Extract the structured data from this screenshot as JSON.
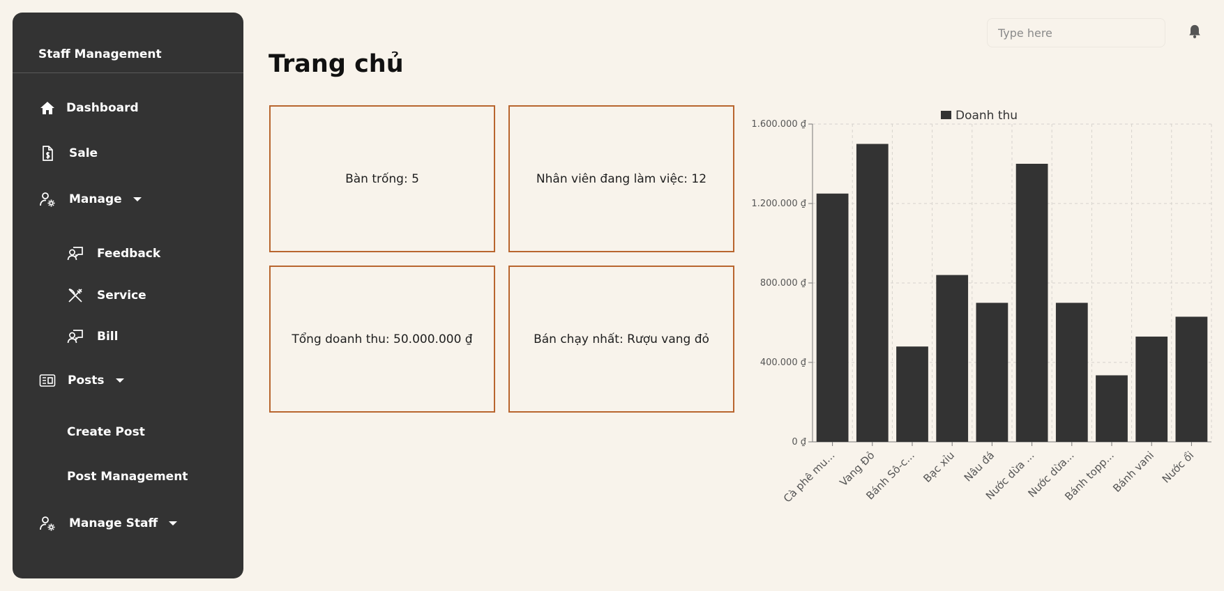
{
  "sidebar": {
    "title": "Staff Management",
    "items": [
      {
        "label": "Dashboard"
      },
      {
        "label": "Sale"
      },
      {
        "label": "Manage"
      },
      {
        "label": "Feedback"
      },
      {
        "label": "Service"
      },
      {
        "label": "Bill"
      },
      {
        "label": "Posts"
      },
      {
        "label": "Create Post"
      },
      {
        "label": "Post Management"
      },
      {
        "label": "Manage Staff"
      }
    ]
  },
  "header": {
    "search_placeholder": "Type here",
    "notification_icon": "bell-icon"
  },
  "page": {
    "title": "Trang chủ"
  },
  "cards": [
    {
      "text": "Bàn trống: 5"
    },
    {
      "text": "Nhân viên đang làm việc: 12"
    },
    {
      "text": "Tổng doanh thu: 50.000.000 ₫"
    },
    {
      "text": "Bán chạy nhất: Rượu vang đỏ"
    }
  ],
  "colors": {
    "background": "#f8f3eb",
    "sidebar": "#333333",
    "card_border": "#b8652e",
    "bar": "#333333"
  },
  "chart_data": {
    "type": "bar",
    "legend": "Doanh thu",
    "legend_position": "top",
    "categories": [
      "Cà phê mu...",
      "Vang Đỏ",
      "Bánh Sô-c...",
      "Bạc xỉu",
      "Nâu đá",
      "Nước dừa ...",
      "Nước dừa...",
      "Bánh topp...",
      "Bánh vani",
      "Nước ổi"
    ],
    "series": [
      {
        "name": "Doanh thu",
        "values": [
          1250000,
          1500000,
          480000,
          840000,
          700000,
          1400000,
          700000,
          335000,
          530000,
          630000
        ]
      }
    ],
    "ylim": [
      0,
      1600000
    ],
    "yticks": [
      {
        "value": 0,
        "label": "0 ₫"
      },
      {
        "value": 400000,
        "label": "400.000 ₫"
      },
      {
        "value": 800000,
        "label": "800.000 ₫"
      },
      {
        "value": 1200000,
        "label": "1.200.000 ₫"
      },
      {
        "value": 1600000,
        "label": "1.600.000 ₫"
      }
    ],
    "grid": true
  }
}
